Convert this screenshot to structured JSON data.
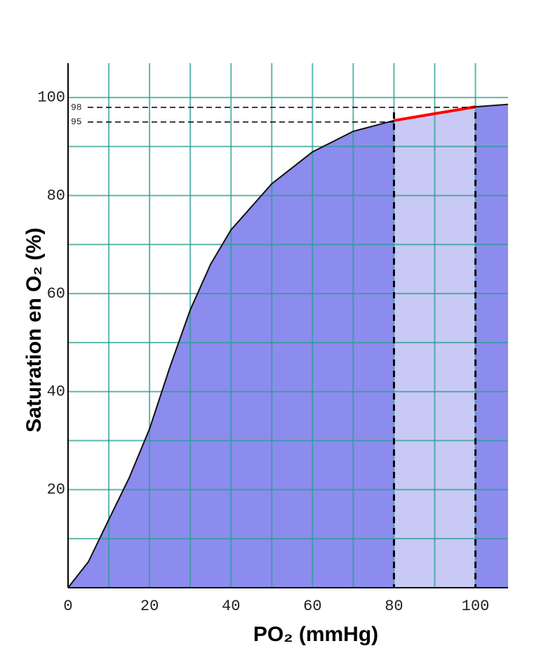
{
  "chart_data": {
    "type": "area",
    "ylabel": "Saturation  en O₂ (%)",
    "xlabel": "PO₂ (mmHg)",
    "x": [
      0,
      5,
      10,
      15,
      20,
      25,
      30,
      35,
      40,
      50,
      60,
      70,
      80,
      90,
      100,
      108
    ],
    "series": [
      {
        "color": "#8c8cee",
        "values": [
          0,
          5.3,
          13.9,
          22.4,
          32.4,
          45,
          56.7,
          66,
          73,
          82.4,
          88.9,
          93.1,
          95.3,
          96.7,
          98.1,
          98.6
        ]
      }
    ],
    "xlim": [
      0,
      108
    ],
    "ylim": [
      0,
      107
    ],
    "xticks": [
      0,
      20,
      40,
      60,
      80,
      100
    ],
    "yticks": [
      20,
      40,
      60,
      80,
      100
    ],
    "minor_xticks": [
      10,
      30,
      50,
      70,
      90
    ],
    "minor_yticks": [
      10,
      30,
      50,
      70,
      90
    ],
    "grid": true,
    "grid_color": "#2a9d8f",
    "bands": [
      {
        "x": [
          80,
          100
        ],
        "color": "#c9c9f6"
      }
    ],
    "highlight": {
      "x": [
        80,
        100
      ],
      "color": "#ff0000"
    },
    "vlines": [
      80,
      100
    ],
    "hlines": [
      {
        "y": 98,
        "x_end": 100
      },
      {
        "y": 95,
        "x_end": 80
      }
    ]
  }
}
